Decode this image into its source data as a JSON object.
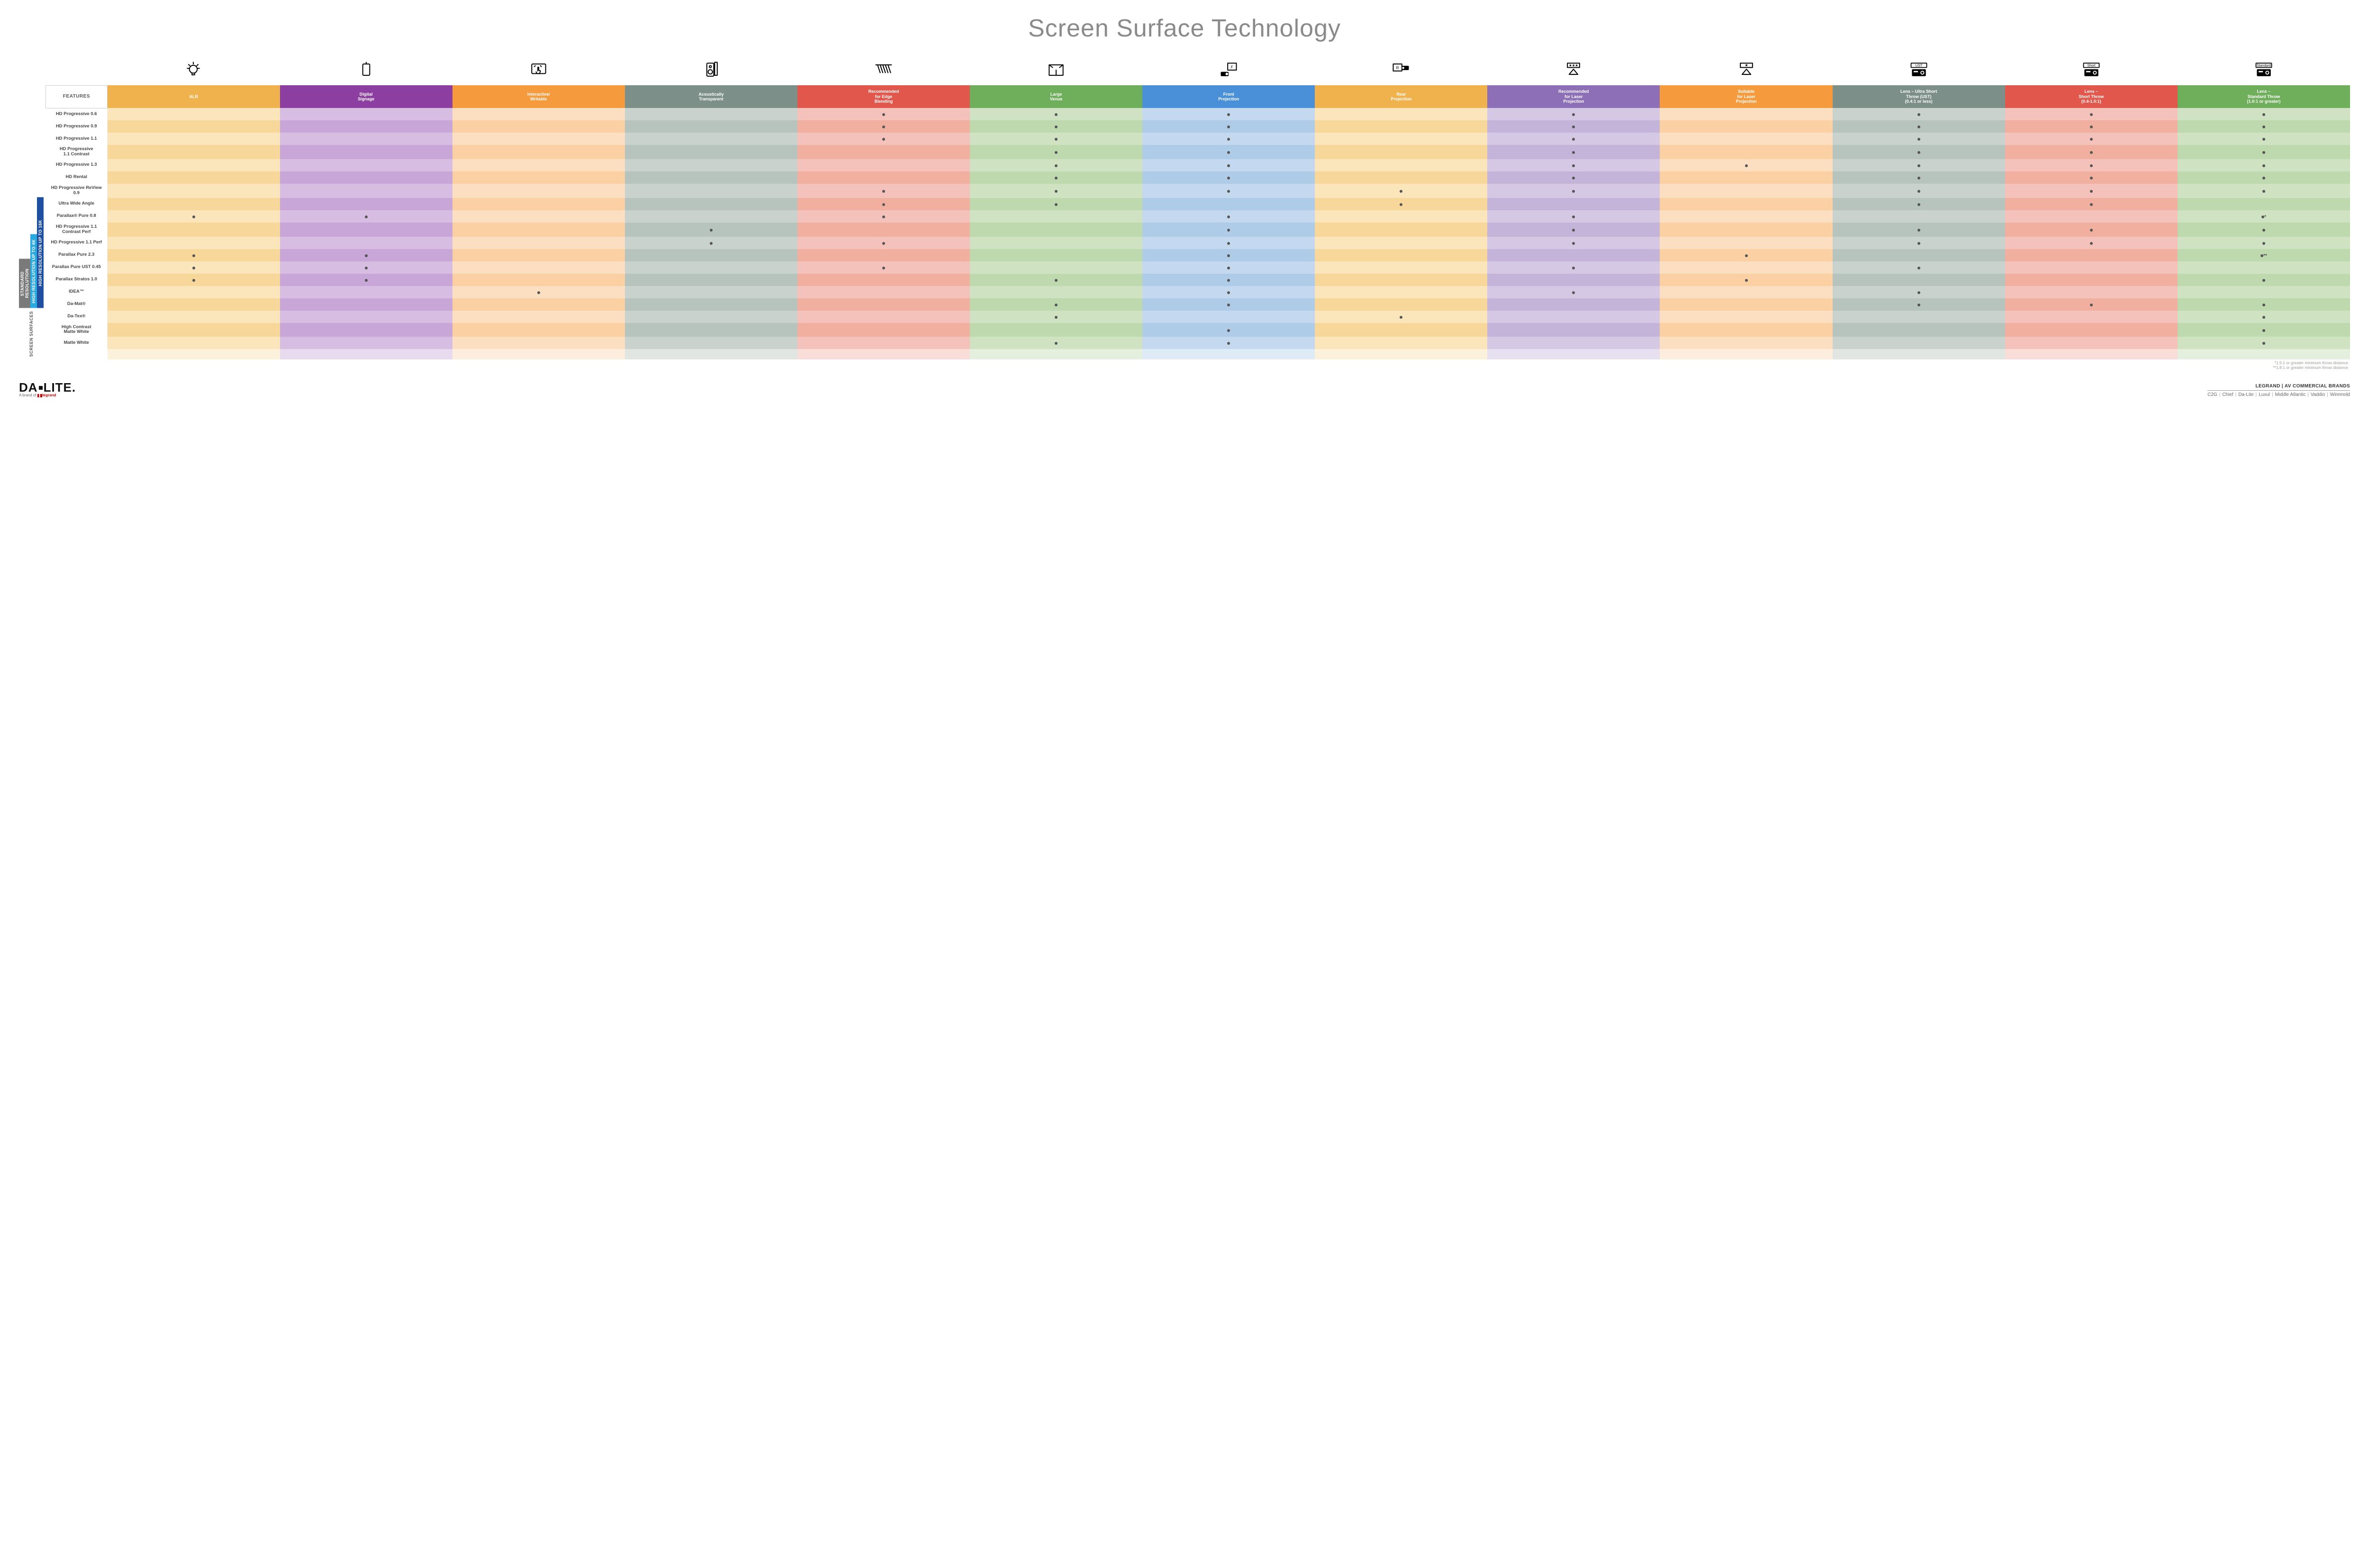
{
  "title": "Screen Surface Technology",
  "colors": {
    "dot": "#555555",
    "group_16k": "#1f4fa0",
    "group_4k": "#2aa9e0",
    "group_std": "#7a7a7a"
  },
  "columns": [
    {
      "key": "alr",
      "label": "ALR",
      "color": "#f0b24c",
      "icon": "bulb"
    },
    {
      "key": "signage",
      "label": "Digital\nSignage",
      "color": "#8c3fa0",
      "icon": "signage"
    },
    {
      "key": "interactive",
      "label": "Interactive/\nWritable",
      "color": "#f59b3e",
      "icon": "touch"
    },
    {
      "key": "acoustic",
      "label": "Acoustically\nTransparent",
      "color": "#7c8f89",
      "icon": "speaker"
    },
    {
      "key": "edge",
      "label": "Recommended\nfor Edge\nBlending",
      "color": "#e2574c",
      "icon": "blend"
    },
    {
      "key": "venue",
      "label": "Large\nVenue",
      "color": "#6fae5a",
      "icon": "venue"
    },
    {
      "key": "front",
      "label": "Front\nProjection",
      "color": "#4a90d9",
      "icon": "front"
    },
    {
      "key": "rear",
      "label": "Rear\nProjection",
      "color": "#f0b24c",
      "icon": "rear"
    },
    {
      "key": "laser_rec",
      "label": "Recommended\nfor Laser\nProjection",
      "color": "#8c6fb6",
      "icon": "laser3"
    },
    {
      "key": "laser_suit",
      "label": "Suitable\nfor Laser\nProjection",
      "color": "#f59b3e",
      "icon": "laser1"
    },
    {
      "key": "lens_ust",
      "label": "Lens – Ultra Short\nThrow (UST)\n(0.4:1 or less)",
      "color": "#7c8f89",
      "icon": "proj_ust"
    },
    {
      "key": "lens_short",
      "label": "Lens –\nShort Throw\n(0.4-1.0:1)",
      "color": "#e2574c",
      "icon": "proj_short"
    },
    {
      "key": "lens_std",
      "label": "Lens –\nStandard Throw\n(1.0:1 or greater)",
      "color": "#6fae5a",
      "icon": "proj_std"
    }
  ],
  "column_tints": {
    "alr": {
      "even": "#fbe6bc",
      "odd": "#f8d89a"
    },
    "signage": {
      "even": "#d7bde2",
      "odd": "#c8a6d8"
    },
    "interactive": {
      "even": "#fcdfc0",
      "odd": "#fbd1a3"
    },
    "acoustic": {
      "even": "#c9d2cd",
      "odd": "#b7c3bd"
    },
    "edge": {
      "even": "#f4c2ba",
      "odd": "#f0af9f"
    },
    "venue": {
      "even": "#cfe3c3",
      "odd": "#bed9ae"
    },
    "front": {
      "even": "#c4d9ef",
      "odd": "#aecbe8"
    },
    "rear": {
      "even": "#fbe6bc",
      "odd": "#f8d89a"
    },
    "laser_rec": {
      "even": "#d4c8e4",
      "odd": "#c5b4da"
    },
    "laser_suit": {
      "even": "#fcdfc0",
      "odd": "#fbd1a3"
    },
    "lens_ust": {
      "even": "#c9d2cd",
      "odd": "#b7c3bd"
    },
    "lens_short": {
      "even": "#f4c2ba",
      "odd": "#f0af9f"
    },
    "lens_std": {
      "even": "#cfe3c3",
      "odd": "#bed9ae"
    }
  },
  "features_header": "FEATURES",
  "side_label": "SCREEN SURFACES",
  "groups": [
    {
      "key": "16k",
      "label": "HIGH RESOLUTION UP TO 16K",
      "color": "#1f4fa0"
    },
    {
      "key": "4k",
      "label": "HIGH RESOLUTION UP TO 4K",
      "color": "#2aa9e0"
    },
    {
      "key": "std",
      "label": "STANDARD\nRESOLUTION",
      "color": "#7a7a7a"
    }
  ],
  "rows": [
    {
      "group": "16k",
      "label": "HD Progressive 0.6",
      "marks": {
        "edge": "•",
        "venue": "•",
        "front": "•",
        "laser_rec": "•",
        "lens_ust": "•",
        "lens_short": "•",
        "lens_std": "•"
      }
    },
    {
      "group": "16k",
      "label": "HD Progressive 0.9",
      "marks": {
        "edge": "•",
        "venue": "•",
        "front": "•",
        "laser_rec": "•",
        "lens_ust": "•",
        "lens_short": "•",
        "lens_std": "•"
      }
    },
    {
      "group": "16k",
      "label": "HD Progressive 1.1",
      "marks": {
        "edge": "•",
        "venue": "•",
        "front": "•",
        "laser_rec": "•",
        "lens_ust": "•",
        "lens_short": "•",
        "lens_std": "•"
      }
    },
    {
      "group": "16k",
      "label": "HD Progressive\n1.1 Contrast",
      "marks": {
        "venue": "•",
        "front": "•",
        "laser_rec": "•",
        "lens_ust": "•",
        "lens_short": "•",
        "lens_std": "•"
      }
    },
    {
      "group": "16k",
      "label": "HD Progressive 1.3",
      "marks": {
        "venue": "•",
        "front": "•",
        "laser_rec": "•",
        "laser_suit": "•",
        "lens_ust": "•",
        "lens_short": "•",
        "lens_std": "•"
      }
    },
    {
      "group": "16k",
      "label": "HD Rental",
      "marks": {
        "venue": "•",
        "front": "•",
        "laser_rec": "•",
        "lens_ust": "•",
        "lens_short": "•",
        "lens_std": "•"
      }
    },
    {
      "group": "16k",
      "label": "HD Progressive ReView 0.9",
      "marks": {
        "edge": "•",
        "venue": "•",
        "front": "•",
        "rear": "•",
        "laser_rec": "•",
        "lens_ust": "•",
        "lens_short": "•",
        "lens_std": "•"
      }
    },
    {
      "group": "16k",
      "label": "Ultra Wide Angle",
      "marks": {
        "edge": "•",
        "venue": "•",
        "rear": "•",
        "lens_ust": "•",
        "lens_short": "•"
      }
    },
    {
      "group": "16k",
      "label": "Parallax® Pure 0.8",
      "marks": {
        "alr": "•",
        "signage": "•",
        "edge": "•",
        "front": "•",
        "laser_rec": "•",
        "lens_std": "•*"
      }
    },
    {
      "group": "4k",
      "label": "HD Progressive 1.1\nContrast Perf",
      "marks": {
        "acoustic": "•",
        "front": "•",
        "laser_rec": "•",
        "lens_ust": "•",
        "lens_short": "•",
        "lens_std": "•"
      }
    },
    {
      "group": "4k",
      "label": "HD Progressive 1.1 Perf",
      "marks": {
        "acoustic": "•",
        "edge": "•",
        "front": "•",
        "laser_rec": "•",
        "lens_ust": "•",
        "lens_short": "•",
        "lens_std": "•"
      }
    },
    {
      "group": "4k",
      "label": "Parallax Pure 2.3",
      "marks": {
        "alr": "•",
        "signage": "•",
        "front": "•",
        "laser_suit": "•",
        "lens_std": "•**"
      }
    },
    {
      "group": "4k",
      "label": "Parallax Pure UST 0.45",
      "marks": {
        "alr": "•",
        "signage": "•",
        "edge": "•",
        "front": "•",
        "laser_rec": "•",
        "lens_ust": "•"
      }
    },
    {
      "group": "4k",
      "label": "Parallax Stratos 1.0",
      "marks": {
        "alr": "•",
        "signage": "•",
        "venue": "•",
        "front": "•",
        "laser_suit": "•",
        "lens_std": "•"
      }
    },
    {
      "group": "4k",
      "label": "IDEA™",
      "marks": {
        "interactive": "•",
        "front": "•",
        "laser_rec": "•",
        "lens_ust": "•"
      }
    },
    {
      "group": "std",
      "label": "Da-Mat®",
      "marks": {
        "venue": "•",
        "front": "•",
        "lens_ust": "•",
        "lens_short": "•",
        "lens_std": "•"
      }
    },
    {
      "group": "std",
      "label": "Da-Tex®",
      "marks": {
        "venue": "•",
        "rear": "•",
        "lens_std": "•"
      }
    },
    {
      "group": "std",
      "label": "High Contrast\nMatte White",
      "marks": {
        "front": "•",
        "lens_std": "•"
      }
    },
    {
      "group": "std",
      "label": "Matte White",
      "marks": {
        "venue": "•",
        "front": "•",
        "lens_std": "•"
      }
    }
  ],
  "footnotes": [
    "*1.5:1 or greater minimum throw distance",
    "**1.8:1 or greater minimum throw distance"
  ],
  "footer": {
    "brand_main": "DA·LITE.",
    "brand_sub_prefix": "A brand of ",
    "brand_sub_legrand": "legrand",
    "right_line1": "LEGRAND | AV COMMERCIAL BRANDS",
    "right_brands": [
      "C2G",
      "Chief",
      "Da-Lite",
      "Luxul",
      "Middle Atlantic",
      "Vaddio",
      "Wiremold"
    ]
  }
}
